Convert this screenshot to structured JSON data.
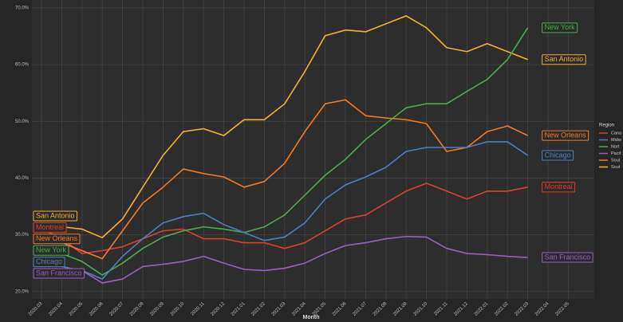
{
  "chart_data": {
    "type": "line",
    "x_label": "Month",
    "categories": [
      "2020.03",
      "2020.04",
      "2020.05",
      "2020.06",
      "2020.07",
      "2020.08",
      "2020.09",
      "2020.10",
      "2020.11",
      "2020.12",
      "2021.01",
      "2021.02",
      "2021.03",
      "2021.04",
      "2021.05",
      "2021.06",
      "2021.07",
      "2021.08",
      "2021.09",
      "2021.10",
      "2021.11",
      "2021.12",
      "2022.01",
      "2022.02",
      "2022.03",
      "2022.04",
      "2022.05"
    ],
    "series": [
      {
        "name": "San Antonio",
        "color": "#f2b234",
        "values": [
          31.8,
          31.4,
          31,
          29.5,
          32.8,
          38.4,
          44,
          48.2,
          48.7,
          47.5,
          50.3,
          50.3,
          53.1,
          58.8,
          65.1,
          66.1,
          65.8,
          67.2,
          68.6,
          66.5,
          63,
          62.3,
          63.7,
          62.3,
          60.9,
          null,
          null
        ]
      },
      {
        "name": "Montreal",
        "color": "#d9412f",
        "values": [
          31.1,
          29.3,
          26.7,
          27.2,
          27.9,
          29.3,
          30.7,
          31,
          29.3,
          29.3,
          28.6,
          28.6,
          27.6,
          28.6,
          30.7,
          32.8,
          33.5,
          35.6,
          37.7,
          39.1,
          37.7,
          36.3,
          37.7,
          37.7,
          38.4,
          null,
          null
        ]
      },
      {
        "name": "New Orleans",
        "color": "#f07b2a",
        "values": [
          29.3,
          28.6,
          27.2,
          25.8,
          30.7,
          35.6,
          38.4,
          41.6,
          40.8,
          40.2,
          38.4,
          39.4,
          42.6,
          48.2,
          53.1,
          53.8,
          51,
          50.6,
          50.3,
          49.6,
          44.7,
          45.4,
          48.2,
          49.2,
          47.5,
          null,
          null
        ]
      },
      {
        "name": "New York",
        "color": "#4daa50",
        "values": [
          27.4,
          26.7,
          25.3,
          22.9,
          25,
          27.6,
          29.6,
          30.7,
          31.4,
          31,
          30.4,
          31.4,
          33.5,
          37,
          40.5,
          43.3,
          46.8,
          49.6,
          52.4,
          53.1,
          53.1,
          55.3,
          57.4,
          60.9,
          66.5,
          null,
          null
        ]
      },
      {
        "name": "Chicago",
        "color": "#4f7fbf",
        "values": [
          25.3,
          24.4,
          23.7,
          22.2,
          26.2,
          29.3,
          32.1,
          33.2,
          33.8,
          31.8,
          30.4,
          29,
          29.6,
          32.1,
          36.3,
          38.8,
          40.2,
          41.9,
          44.7,
          45.4,
          45.4,
          45.4,
          46.4,
          46.4,
          44,
          null,
          null
        ]
      },
      {
        "name": "San Francisco",
        "color": "#9b5fc0",
        "values": [
          23.4,
          22.9,
          23.7,
          21.5,
          22.2,
          24.4,
          24.8,
          25.3,
          26.2,
          25,
          23.9,
          23.7,
          24.1,
          25,
          26.7,
          28.1,
          28.6,
          29.3,
          29.7,
          29.6,
          27.6,
          26.7,
          26.5,
          26.2,
          26,
          null,
          null
        ]
      }
    ],
    "ylim": [
      18.7,
      71.4
    ],
    "yticks": [
      {
        "value": 20,
        "label": "20.0%"
      },
      {
        "value": 30,
        "label": "30.0%"
      },
      {
        "value": 40,
        "label": "40.0%"
      },
      {
        "value": 50,
        "label": "50.0%"
      },
      {
        "value": 60,
        "label": "60.0%"
      },
      {
        "value": 70,
        "label": "70.0%"
      }
    ],
    "grid": true,
    "legend": {
      "title": "Region",
      "entries": [
        {
          "label": "Cana",
          "color": "#d9412f"
        },
        {
          "label": "Midw",
          "color": "#4f7fbf"
        },
        {
          "label": "Nort",
          "color": "#4daa50"
        },
        {
          "label": "Pacif",
          "color": "#9b5fc0"
        },
        {
          "label": "Sout",
          "color": "#f07b2a"
        },
        {
          "label": "Sout",
          "color": "#f2b234"
        }
      ]
    }
  }
}
